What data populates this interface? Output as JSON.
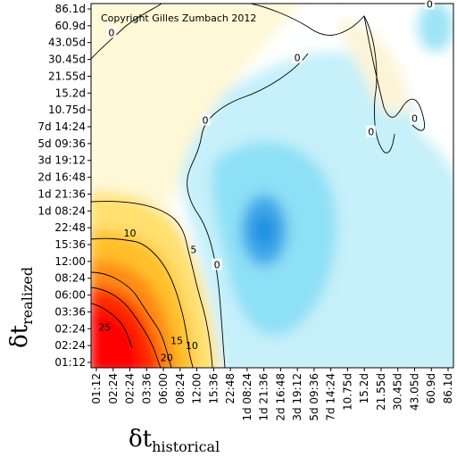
{
  "chart_data": {
    "type": "heatmap",
    "annotation": "Copyright Gilles Zumbach 2012",
    "xlabel": {
      "symbol": "δt",
      "subscript": "historical"
    },
    "ylabel": {
      "symbol": "δt",
      "subscript": "realized"
    },
    "x_ticks": [
      "01:12",
      "02:24",
      "02:24",
      "03:36",
      "06:00",
      "08:24",
      "12:00",
      "15:36",
      "22:48",
      "1d 08:24",
      "1d 21:36",
      "2d 16:48",
      "3d 19:12",
      "5d 09:36",
      "7d 14:24",
      "10.75d",
      "15.2d",
      "21.55d",
      "30.45d",
      "43.05d",
      "60.9d",
      "86.1d"
    ],
    "y_ticks": [
      "01:12",
      "02:24",
      "02:24",
      "03:36",
      "06:00",
      "08:24",
      "12:00",
      "15:36",
      "22:48",
      "1d 08:24",
      "1d 21:36",
      "2d 16:48",
      "3d 19:12",
      "5d 09:36",
      "7d 14:24",
      "10.75d",
      "15.2d",
      "21.55d",
      "30.45d",
      "43.05d",
      "60.9d",
      "86.1d"
    ],
    "contour_levels": [
      0,
      5,
      10,
      15,
      20,
      25
    ],
    "contour_labels": [
      {
        "text": "0",
        "x_index": 19.9,
        "y_index": 21.3
      },
      {
        "text": "0",
        "x_index": 0.9,
        "y_index": 19.6
      },
      {
        "text": "0",
        "x_index": 12.0,
        "y_index": 18.1
      },
      {
        "text": "0",
        "x_index": 6.5,
        "y_index": 14.4
      },
      {
        "text": "0",
        "x_index": 16.4,
        "y_index": 13.7
      },
      {
        "text": "0",
        "x_index": 19.0,
        "y_index": 14.5
      },
      {
        "text": "0",
        "x_index": 7.2,
        "y_index": 5.8
      },
      {
        "text": "5",
        "x_index": 5.8,
        "y_index": 6.7
      },
      {
        "text": "10",
        "x_index": 2.0,
        "y_index": 7.7
      },
      {
        "text": "10",
        "x_index": 5.7,
        "y_index": 1.0
      },
      {
        "text": "15",
        "x_index": 4.8,
        "y_index": 1.3
      },
      {
        "text": "20",
        "x_index": 4.2,
        "y_index": 0.3
      },
      {
        "text": "25",
        "x_index": 0.5,
        "y_index": 2.1
      }
    ],
    "color_scale": {
      "stops": [
        {
          "value": 25,
          "color": "#ff0000"
        },
        {
          "value": 15,
          "color": "#ff9000"
        },
        {
          "value": 8,
          "color": "#ffd400"
        },
        {
          "value": 2,
          "color": "#fff8c0"
        },
        {
          "value": 0,
          "color": "#ffffff"
        },
        {
          "value": -3,
          "color": "#b8eef8"
        },
        {
          "value": -7,
          "color": "#2ec8f0"
        },
        {
          "value": -10,
          "color": "#1e8fe0"
        }
      ]
    },
    "grid": false
  }
}
